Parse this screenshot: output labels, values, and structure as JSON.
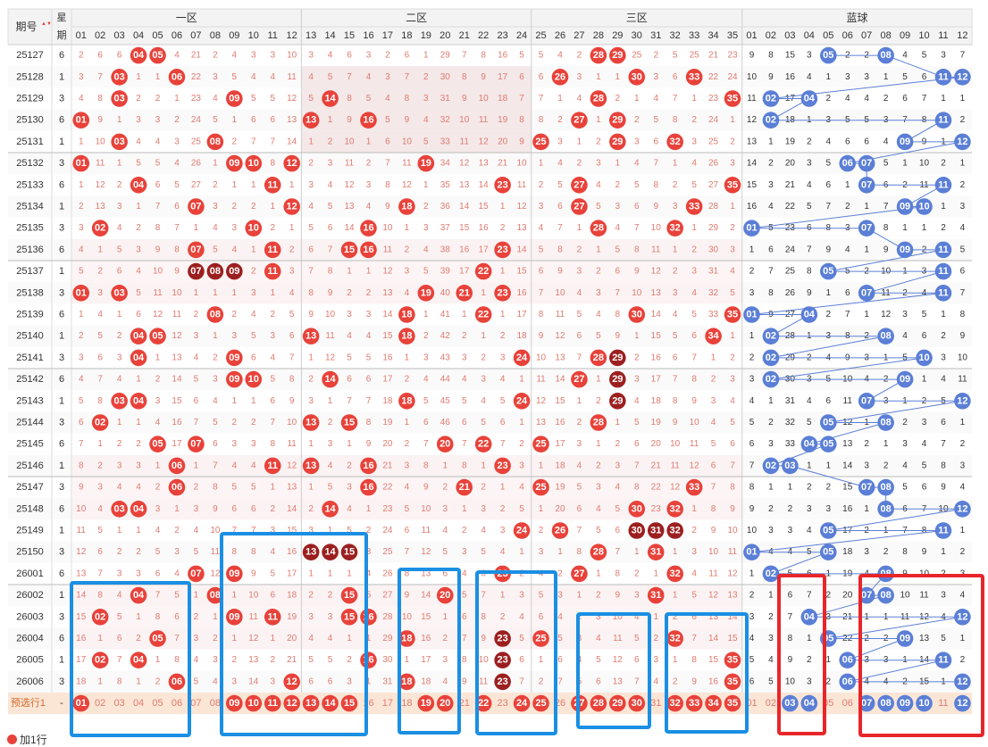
{
  "header": {
    "period_label": "期号",
    "sort_arrow": "▲▼",
    "weekday_label_top": "星",
    "weekday_label_bottom": "期",
    "zones": [
      "一区",
      "二区",
      "三区",
      "蓝球"
    ],
    "front_numbers": [
      "01",
      "02",
      "03",
      "04",
      "05",
      "06",
      "07",
      "08",
      "09",
      "10",
      "11",
      "12",
      "13",
      "14",
      "15",
      "16",
      "17",
      "18",
      "19",
      "20",
      "21",
      "22",
      "23",
      "24",
      "25",
      "26",
      "27",
      "28",
      "29",
      "30",
      "31",
      "32",
      "33",
      "34",
      "35"
    ],
    "back_numbers": [
      "01",
      "02",
      "03",
      "04",
      "05",
      "06",
      "07",
      "08",
      "09",
      "10",
      "11",
      "12"
    ]
  },
  "preselect_row": {
    "label": "预选行1",
    "weekday": "-",
    "front_selected": [
      "01",
      "09",
      "10",
      "11",
      "12",
      "13",
      "14",
      "15",
      "19",
      "20",
      "22",
      "24",
      "25",
      "27",
      "28",
      "29",
      "30",
      "32",
      "33",
      "34",
      "35"
    ],
    "back_selected": [
      "03",
      "04",
      "07",
      "08",
      "09",
      "10",
      "12"
    ]
  },
  "add_row": {
    "label": "加1行"
  },
  "colors": {
    "front_hit": "#e8423a",
    "front_repeat": "#9c1f1f",
    "back_hit": "#5b7fd6",
    "front_miss_text": "#e07a70",
    "back_miss_text": "#333333",
    "zone_band": "#fbeeee",
    "blue_box": "#1a8fe3",
    "red_box": "#e8262a",
    "preselect_bg": "#fbe6d6"
  },
  "chart_data": {
    "type": "table",
    "rows": [
      {
        "period": "25127",
        "weekday": "6",
        "front": [
          "04",
          "05",
          "28",
          "29"
        ],
        "back": [
          "05",
          "08"
        ]
      },
      {
        "period": "25128",
        "weekday": "1",
        "front": [
          "03",
          "06",
          "26",
          "30",
          "33"
        ],
        "back": [
          "11",
          "12"
        ]
      },
      {
        "period": "25129",
        "weekday": "3",
        "front": [
          "03",
          "09",
          "14",
          "28",
          "35"
        ],
        "back": [
          "02",
          "04"
        ]
      },
      {
        "period": "25130",
        "weekday": "6",
        "front": [
          "01",
          "13",
          "16",
          "27",
          "29"
        ],
        "back": [
          "02",
          "11"
        ]
      },
      {
        "period": "25131",
        "weekday": "1",
        "front": [
          "03",
          "08",
          "25",
          "29",
          "32"
        ],
        "back": [
          "09",
          "12"
        ]
      },
      {
        "period": "25132",
        "weekday": "3",
        "front": [
          "01",
          "09",
          "10",
          "12",
          "19"
        ],
        "back": [
          "06",
          "07"
        ]
      },
      {
        "period": "25133",
        "weekday": "6",
        "front": [
          "04",
          "11",
          "23",
          "27",
          "35"
        ],
        "back": [
          "07",
          "11"
        ]
      },
      {
        "period": "25134",
        "weekday": "1",
        "front": [
          "07",
          "12",
          "18",
          "27",
          "33"
        ],
        "back": [
          "09",
          "10"
        ]
      },
      {
        "period": "25135",
        "weekday": "3",
        "front": [
          "02",
          "10",
          "16",
          "28",
          "32"
        ],
        "back": [
          "01",
          "07"
        ]
      },
      {
        "period": "25136",
        "weekday": "6",
        "front": [
          "07",
          "11",
          "15",
          "16",
          "23"
        ],
        "back": [
          "09",
          "11"
        ]
      },
      {
        "period": "25137",
        "weekday": "1",
        "front": [
          "07",
          "08",
          "09",
          "11",
          "22"
        ],
        "back": [
          "05",
          "11"
        ]
      },
      {
        "period": "25138",
        "weekday": "3",
        "front": [
          "01",
          "03",
          "19",
          "21",
          "23"
        ],
        "back": [
          "07",
          "11"
        ]
      },
      {
        "period": "25139",
        "weekday": "6",
        "front": [
          "08",
          "18",
          "22",
          "30",
          "35"
        ],
        "back": [
          "01",
          "04"
        ]
      },
      {
        "period": "25140",
        "weekday": "1",
        "front": [
          "04",
          "05",
          "13",
          "18",
          "34"
        ],
        "back": [
          "02",
          "08"
        ]
      },
      {
        "period": "25141",
        "weekday": "3",
        "front": [
          "04",
          "09",
          "24",
          "28",
          "29"
        ],
        "back": [
          "02",
          "10"
        ]
      },
      {
        "period": "25142",
        "weekday": "6",
        "front": [
          "09",
          "10",
          "14",
          "27",
          "29"
        ],
        "back": [
          "02",
          "09"
        ]
      },
      {
        "period": "25143",
        "weekday": "1",
        "front": [
          "03",
          "04",
          "18",
          "24",
          "29"
        ],
        "back": [
          "07",
          "12"
        ]
      },
      {
        "period": "25144",
        "weekday": "3",
        "front": [
          "02",
          "13",
          "15",
          "28"
        ],
        "back": [
          "05",
          "08"
        ]
      },
      {
        "period": "25145",
        "weekday": "6",
        "front": [
          "05",
          "07",
          "20",
          "22",
          "25"
        ],
        "back": [
          "04",
          "05"
        ]
      },
      {
        "period": "25146",
        "weekday": "1",
        "front": [
          "06",
          "11",
          "13",
          "16",
          "23"
        ],
        "back": [
          "02",
          "03"
        ]
      },
      {
        "period": "25147",
        "weekday": "3",
        "front": [
          "06",
          "16",
          "21",
          "25",
          "33"
        ],
        "back": [
          "07",
          "08"
        ]
      },
      {
        "period": "25148",
        "weekday": "6",
        "front": [
          "03",
          "04",
          "14",
          "30",
          "32"
        ],
        "back": [
          "08",
          "12"
        ]
      },
      {
        "period": "25149",
        "weekday": "1",
        "front": [
          "24",
          "26",
          "30",
          "31",
          "32"
        ],
        "back": [
          "05",
          "11"
        ]
      },
      {
        "period": "25150",
        "weekday": "3",
        "front": [
          "13",
          "14",
          "15",
          "28",
          "31"
        ],
        "back": [
          "01",
          "05"
        ]
      },
      {
        "period": "26001",
        "weekday": "6",
        "front": [
          "07",
          "09",
          "23",
          "27",
          "32"
        ],
        "back": [
          "02",
          "08"
        ]
      },
      {
        "period": "26002",
        "weekday": "1",
        "front": [
          "04",
          "08",
          "15",
          "20",
          "31"
        ],
        "back": [
          "07",
          "08"
        ]
      },
      {
        "period": "26003",
        "weekday": "3",
        "front": [
          "02",
          "09",
          "11",
          "15",
          "16"
        ],
        "back": [
          "04",
          "12"
        ]
      },
      {
        "period": "26004",
        "weekday": "6",
        "front": [
          "05",
          "18",
          "23",
          "25",
          "32"
        ],
        "back": [
          "05",
          "09"
        ]
      },
      {
        "period": "26005",
        "weekday": "1",
        "front": [
          "02",
          "04",
          "16",
          "23",
          "35"
        ],
        "back": [
          "06",
          "11"
        ]
      },
      {
        "period": "26006",
        "weekday": "3",
        "front": [
          "06",
          "12",
          "18",
          "23",
          "35"
        ],
        "back": [
          "06",
          "12"
        ]
      }
    ],
    "repeat_numbers_marked": [
      {
        "period": "25137",
        "numbers": [
          "07",
          "08",
          "09"
        ]
      },
      {
        "period": "25141",
        "numbers": [
          "29"
        ]
      },
      {
        "period": "25142",
        "numbers": [
          "29"
        ]
      },
      {
        "period": "25143",
        "numbers": [
          "29"
        ]
      },
      {
        "period": "25149",
        "numbers": [
          "30",
          "31",
          "32"
        ]
      },
      {
        "period": "25150",
        "numbers": [
          "13",
          "14",
          "15"
        ]
      },
      {
        "period": "26004",
        "numbers": [
          "23"
        ]
      },
      {
        "period": "26005",
        "numbers": [
          "23"
        ]
      },
      {
        "period": "26006",
        "numbers": [
          "23"
        ]
      }
    ]
  }
}
